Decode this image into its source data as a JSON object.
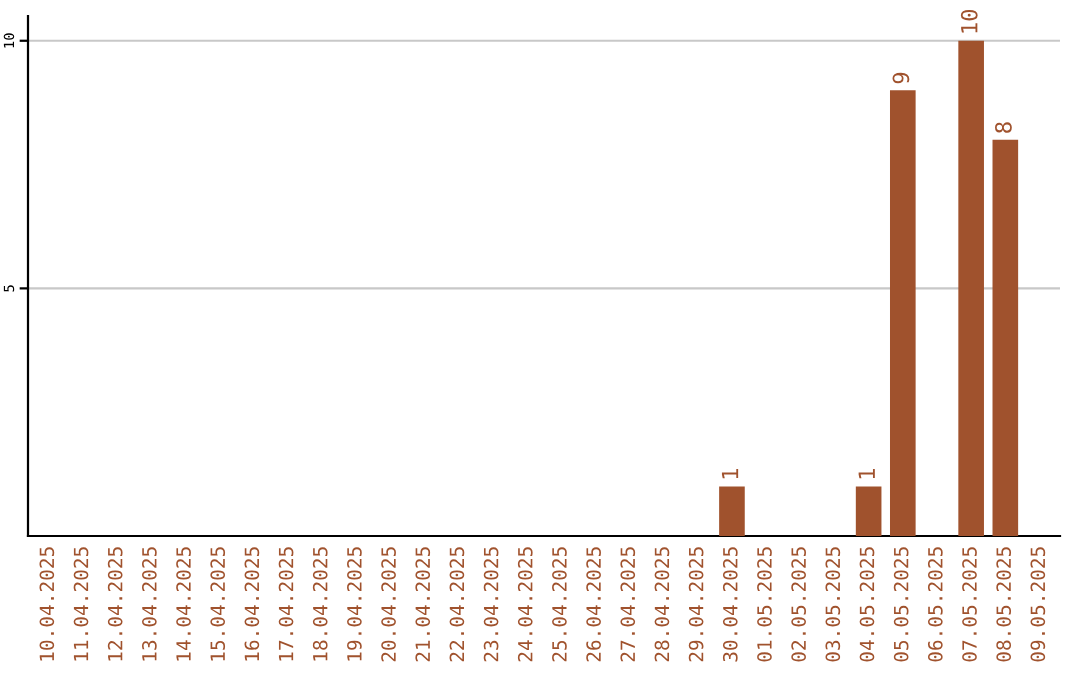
{
  "chart_data": {
    "type": "bar",
    "categories": [
      "10.04.2025",
      "11.04.2025",
      "12.04.2025",
      "13.04.2025",
      "14.04.2025",
      "15.04.2025",
      "16.04.2025",
      "17.04.2025",
      "18.04.2025",
      "19.04.2025",
      "20.04.2025",
      "21.04.2025",
      "22.04.2025",
      "23.04.2025",
      "24.04.2025",
      "25.04.2025",
      "26.04.2025",
      "27.04.2025",
      "28.04.2025",
      "29.04.2025",
      "30.04.2025",
      "01.05.2025",
      "02.05.2025",
      "03.05.2025",
      "04.05.2025",
      "05.05.2025",
      "06.05.2025",
      "07.05.2025",
      "08.05.2025",
      "09.05.2025"
    ],
    "values": [
      0,
      0,
      0,
      0,
      0,
      0,
      0,
      0,
      0,
      0,
      0,
      0,
      0,
      0,
      0,
      0,
      0,
      0,
      0,
      0,
      1,
      0,
      0,
      0,
      1,
      9,
      0,
      10,
      8,
      0
    ],
    "value_labels": [
      null,
      null,
      null,
      null,
      null,
      null,
      null,
      null,
      null,
      null,
      null,
      null,
      null,
      null,
      null,
      null,
      null,
      null,
      null,
      null,
      "1",
      null,
      null,
      null,
      "1",
      "9",
      null,
      "10",
      "8",
      null
    ],
    "color": "#a0522d",
    "ylim": [
      0,
      10.5
    ],
    "yticks": [
      5,
      10
    ],
    "grid": "y"
  }
}
